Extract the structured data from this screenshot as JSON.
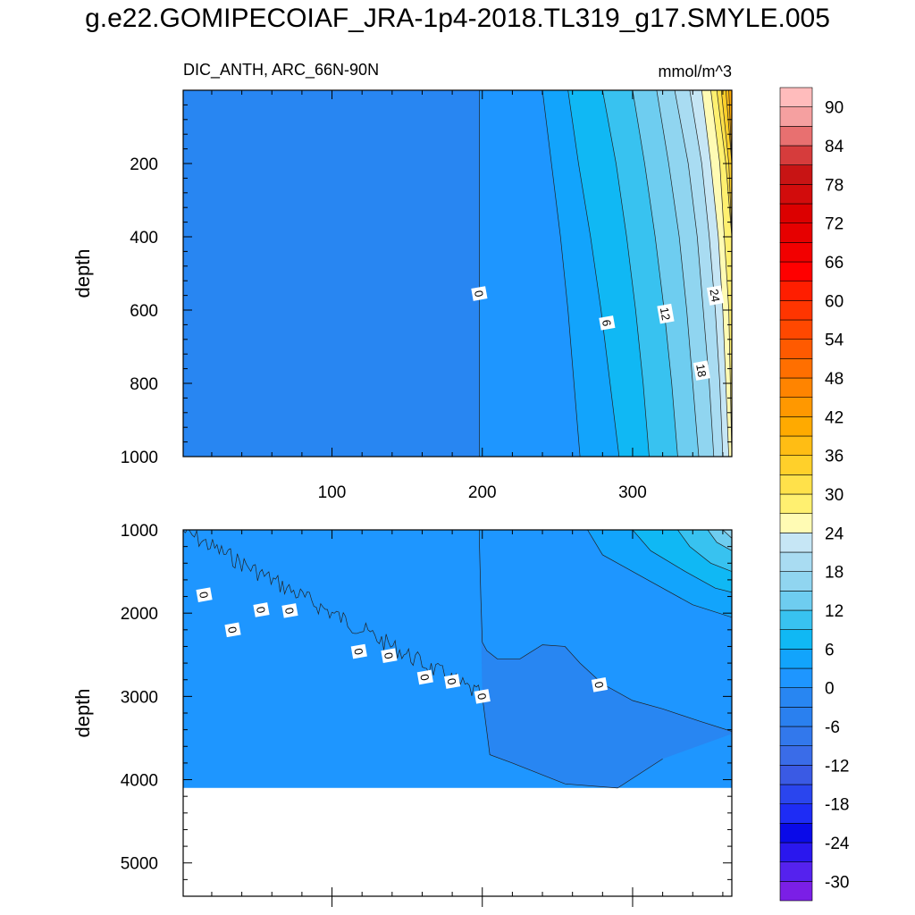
{
  "title": "g.e22.GOMIPECOIAF_JRA-1p4-2018.TL319_g17.SMYLE.005",
  "chart_data": {
    "type": "contour",
    "subtitle_left": "DIC_ANTH, ARC_66N-90N",
    "units": "mmol/m^3",
    "colorbar": {
      "levels": [
        -33,
        -30,
        -27,
        -24,
        -21,
        -18,
        -15,
        -12,
        -9,
        -6,
        -3,
        0,
        3,
        6,
        9,
        12,
        15,
        18,
        21,
        24,
        27,
        30,
        33,
        36,
        39,
        42,
        45,
        48,
        51,
        54,
        57,
        60,
        63,
        66,
        69,
        72,
        75,
        78,
        81,
        84,
        87,
        90,
        93
      ],
      "tick_labels": [
        "-30",
        "-24",
        "-18",
        "-12",
        "-6",
        "0",
        "6",
        "12",
        "18",
        "24",
        "30",
        "36",
        "42",
        "48",
        "54",
        "60",
        "66",
        "72",
        "78",
        "84",
        "90"
      ],
      "colors": [
        "#7b1fe6",
        "#5522ee",
        "#2a17ee",
        "#0a0ae8",
        "#1e2cf5",
        "#2a45ee",
        "#3a5ae4",
        "#3a6ce8",
        "#3278ec",
        "#2a80ef",
        "#2886f2",
        "#1e96ff",
        "#12a4fc",
        "#10b8f4",
        "#38c2f0",
        "#6ecdf0",
        "#90d5f0",
        "#a9dcf2",
        "#c6e6f5",
        "#fffbb4",
        "#fff070",
        "#ffe14a",
        "#ffd02a",
        "#ffbd14",
        "#ffaa00",
        "#ff9800",
        "#ff8400",
        "#ff6f00",
        "#ff5a00",
        "#ff4800",
        "#ff3500",
        "#ff1e00",
        "#ff0000",
        "#f20000",
        "#e60000",
        "#dc0000",
        "#d20c0c",
        "#c81414",
        "#d63c3c",
        "#e87070",
        "#f5a0a0",
        "#ffbcbc"
      ]
    },
    "panels": [
      {
        "name": "upper",
        "ylabel": "depth",
        "ylim": [
          0,
          1000
        ],
        "y_inverted": true,
        "yticks": [
          200,
          400,
          600,
          800,
          1000
        ],
        "xlim": [
          1,
          366
        ],
        "xticks": [
          100,
          200,
          300
        ],
        "contour_labels": [
          {
            "text": "0",
            "x": 198,
            "y": 555
          },
          {
            "text": "6",
            "x": 283,
            "y": 635
          },
          {
            "text": "12",
            "x": 322,
            "y": 610
          },
          {
            "text": "18",
            "x": 346,
            "y": 765
          },
          {
            "text": "24",
            "x": 355,
            "y": 560
          }
        ],
        "profile": {
          "depths": [
            0,
            200,
            400,
            600,
            800,
            1000
          ],
          "isolines": [
            {
              "v": 0,
              "x": [
                198,
                198,
                198,
                198,
                198,
                198
              ]
            },
            {
              "v": 3,
              "x": [
                240,
                246,
                252,
                257,
                261,
                265
              ]
            },
            {
              "v": 6,
              "x": [
                257,
                264,
                272,
                279,
                285,
                291
              ]
            },
            {
              "v": 9,
              "x": [
                280,
                289,
                296,
                302,
                307,
                311
              ]
            },
            {
              "v": 12,
              "x": [
                300,
                308,
                315,
                321,
                326,
                330
              ]
            },
            {
              "v": 15,
              "x": [
                316,
                324,
                331,
                336,
                340,
                344
              ]
            },
            {
              "v": 18,
              "x": [
                328,
                337,
                343,
                347,
                351,
                354
              ]
            },
            {
              "v": 21,
              "x": [
                338,
                346,
                351,
                355,
                358,
                360
              ]
            },
            {
              "v": 24,
              "x": [
                346,
                352,
                357,
                360,
                362,
                364
              ]
            },
            {
              "v": 27,
              "x": [
                352,
                358,
                361,
                364,
                365,
                366
              ]
            },
            {
              "v": 30,
              "x": [
                356,
                362,
                366,
                366,
                366,
                366
              ]
            },
            {
              "v": 33,
              "x": [
                359,
                364,
                366,
                366,
                366,
                366
              ]
            },
            {
              "v": 36,
              "x": [
                362,
                366,
                366,
                366,
                366,
                366
              ]
            },
            {
              "v": 39,
              "x": [
                364,
                366,
                366,
                366,
                366,
                366
              ]
            }
          ]
        }
      },
      {
        "name": "lower",
        "ylabel": "depth",
        "ylim": [
          1000,
          5400
        ],
        "y_inverted": true,
        "yticks": [
          1000,
          2000,
          3000,
          4000,
          5000
        ],
        "xlim": [
          1,
          366
        ],
        "xticks": [
          100,
          200,
          300
        ],
        "bottom_depth": 4100,
        "contour_labels": [
          {
            "text": "0",
            "x": 15,
            "y": 1780
          },
          {
            "text": "0",
            "x": 34,
            "y": 2200
          },
          {
            "text": "0",
            "x": 53,
            "y": 1960
          },
          {
            "text": "0",
            "x": 72,
            "y": 1970
          },
          {
            "text": "0",
            "x": 118,
            "y": 2460
          },
          {
            "text": "0",
            "x": 138,
            "y": 2510
          },
          {
            "text": "0",
            "x": 162,
            "y": 2770
          },
          {
            "text": "0",
            "x": 180,
            "y": 2820
          },
          {
            "text": "0",
            "x": 200,
            "y": 3000
          },
          {
            "text": "0",
            "x": 278,
            "y": 2860
          }
        ]
      }
    ]
  }
}
